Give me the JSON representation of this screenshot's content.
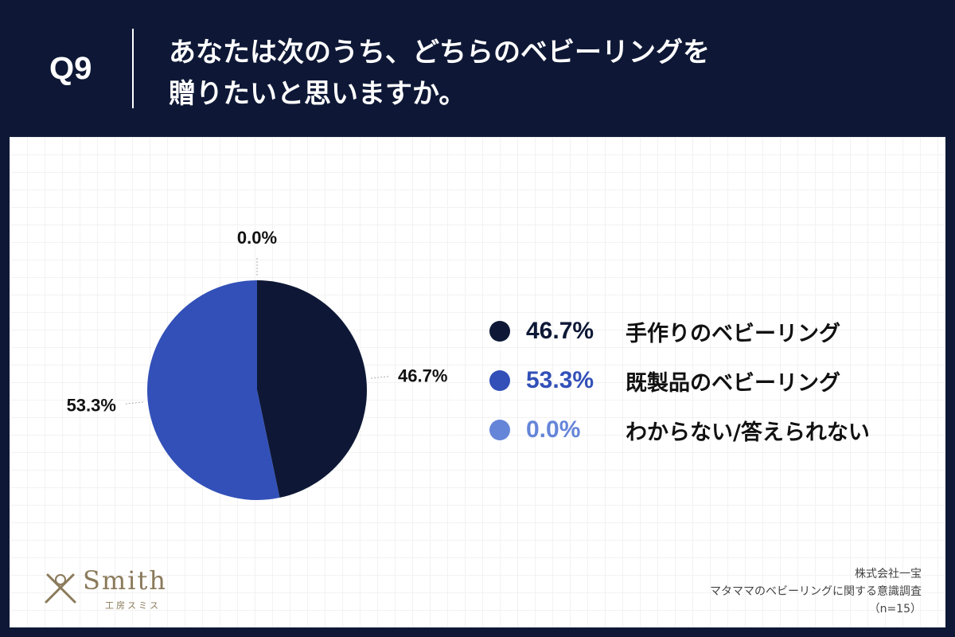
{
  "header": {
    "question_number": "Q9",
    "title_line1": "あなたは次のうち、どちらのベビーリングを",
    "title_line2": "贈りたいと思いますか。"
  },
  "chart_data": {
    "type": "pie",
    "categories": [
      "手作りのベビーリング",
      "既製品のベビーリング",
      "わからない/答えられない"
    ],
    "values": [
      46.7,
      53.3,
      0.0
    ],
    "value_labels": [
      "46.7%",
      "53.3%",
      "0.0%"
    ],
    "colors": [
      "#0e1836",
      "#3250b8",
      "#6585d8"
    ],
    "legend_position": "right"
  },
  "logo": {
    "name": "Smith",
    "subtitle": "工房スミス"
  },
  "source": {
    "company": "株式会社一宝",
    "survey": "マタママのベビーリングに関する意識調査",
    "sample": "（n=15）"
  }
}
